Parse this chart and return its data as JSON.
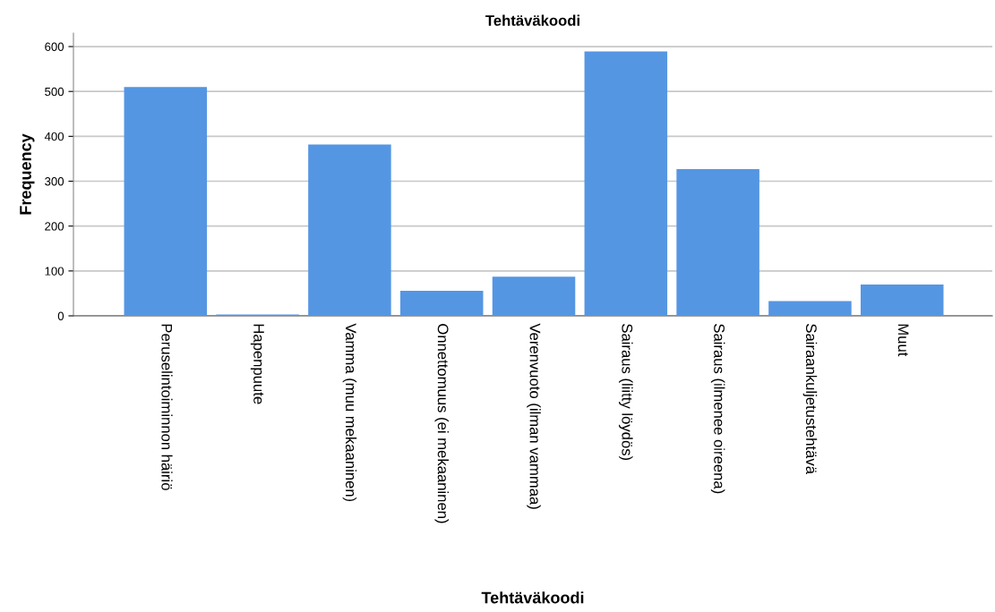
{
  "chart_data": {
    "type": "bar",
    "title": "Tehtäväkoodi",
    "xlabel": "Tehtäväkoodi",
    "ylabel": "Frequency",
    "categories": [
      "Peruselintoiminnon häiriö",
      "Hapenpuute",
      "Vamma (muu mekaaninen)",
      "Onnettomuus (ei mekaaninen)",
      "Verenvuoto (ilman vammaa)",
      "Sairaus (liitty löydös)",
      "Sairaus (ilmenee oireena)",
      "Sairaankuljetustehtävä",
      "Muut"
    ],
    "values": [
      510,
      3,
      382,
      56,
      87,
      589,
      327,
      33,
      70
    ],
    "color": "#5596e3",
    "ylim": [
      0,
      630
    ],
    "yticks": [
      0,
      100,
      200,
      300,
      400,
      500,
      600
    ],
    "grid": "y"
  }
}
